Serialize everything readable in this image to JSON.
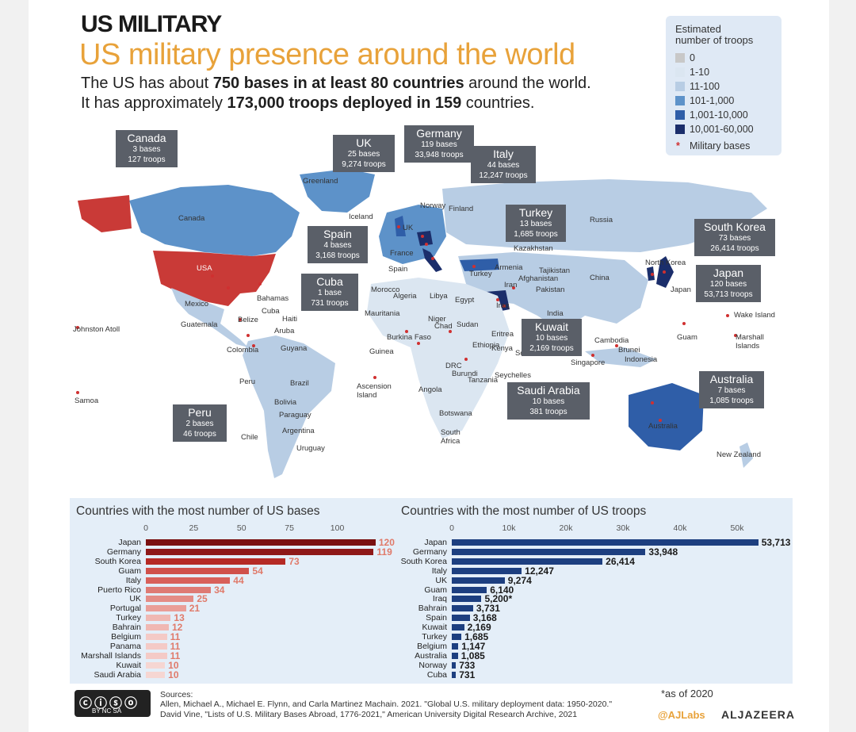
{
  "header": {
    "title": "US MILITARY",
    "subtitle": "US military presence around the world",
    "line1_pre": "The US has about ",
    "line1_b1": "750 bases in at least 80 countries",
    "line1_post": " around the world.",
    "line2_pre": "It has approximately ",
    "line2_b1": "173,000 troops deployed in 159",
    "line2_post": " countries."
  },
  "legend": {
    "title_line1": "Estimated",
    "title_line2": "number of troops",
    "items": [
      {
        "label": "0",
        "color": "#c8c8c8"
      },
      {
        "label": "1-10",
        "color": "#dbe6f1"
      },
      {
        "label": "11-100",
        "color": "#b8cde4"
      },
      {
        "label": "101-1,000",
        "color": "#5d92c9"
      },
      {
        "label": "1,001-10,000",
        "color": "#2f5ea8"
      },
      {
        "label": "10,001-60,000",
        "color": "#1b2e6b"
      }
    ],
    "bases_label": "Military bases",
    "bases_marker": "*"
  },
  "callouts": [
    {
      "name": "Canada",
      "bases": "3 bases",
      "troops": "127 troops"
    },
    {
      "name": "UK",
      "bases": "25 bases",
      "troops": "9,274 troops"
    },
    {
      "name": "Germany",
      "bases": "119 bases",
      "troops": "33,948 troops"
    },
    {
      "name": "Italy",
      "bases": "44 bases",
      "troops": "12,247 troops"
    },
    {
      "name": "Turkey",
      "bases": "13 bases",
      "troops": "1,685 troops"
    },
    {
      "name": "South Korea",
      "bases": "73 bases",
      "troops": "26,414 troops"
    },
    {
      "name": "Spain",
      "bases": "4 bases",
      "troops": "3,168 troops"
    },
    {
      "name": "Cuba",
      "bases": "1 base",
      "troops": "731 troops"
    },
    {
      "name": "Japan",
      "bases": "120 bases",
      "troops": "53,713 troops"
    },
    {
      "name": "Kuwait",
      "bases": "10 bases",
      "troops": "2,169 troops"
    },
    {
      "name": "Saudi Arabia",
      "bases": "10 bases",
      "troops": "381 troops"
    },
    {
      "name": "Australia",
      "bases": "7 bases",
      "troops": "1,085 troops"
    },
    {
      "name": "Peru",
      "bases": "2 bases",
      "troops": "46 troops"
    }
  ],
  "map_labels": [
    "Greenland",
    "Canada",
    "Iceland",
    "Norway",
    "Finland",
    "Russia",
    "UK",
    "France",
    "Spain",
    "Kazakhstan",
    "USA",
    "Armenia",
    "China",
    "Mexico",
    "Bahamas",
    "Cuba",
    "Haiti",
    "Iran",
    "Pakistan",
    "Afghanistan",
    "Algeria",
    "Libya",
    "Egypt",
    "India",
    "Johnston Atoll",
    "Guatemala",
    "Belize",
    "Aruba",
    "Niger",
    "Chad",
    "Sudan",
    "Eritrea",
    "Guam",
    "Marshall Islands",
    "Wake Island",
    "Colombia",
    "Guyana",
    "Burkina Faso",
    "Guinea",
    "Ethiopia",
    "Cambodia",
    "Brunei",
    "Indonesia",
    "Singapore",
    "Peru",
    "Brazil",
    "Ascension Island",
    "DRC",
    "Burundi",
    "Tanzania",
    "Seychelles",
    "Samoa",
    "Angola",
    "Bolivia",
    "Paraguay",
    "Chile",
    "Argentina",
    "Uruguay",
    "Botswana",
    "South Africa",
    "Australia",
    "New Zealand",
    "Morocco",
    "Mauritania",
    "Kenya",
    "Somalia",
    "Japan",
    "North Korea",
    "Turkey",
    "Tajikistan",
    "Iraq"
  ],
  "footer": {
    "sources_label": "Sources:",
    "source1": "Allen, Michael A., Michael E. Flynn, and Carla Martinez Machain. 2021. \"Global U.S. military deployment data: 1950-2020.\"",
    "source2": "David Vine, \"Lists of U.S. Military Bases Abroad, 1776-2021,\" American University Digital Research Archive, 2021",
    "note": "*as of 2020",
    "handle": "@AJLabs",
    "brand": "ALJAZEERA",
    "cc_text": "BY  NC  SA"
  },
  "chart_data": [
    {
      "type": "bar",
      "orientation": "horizontal",
      "title": "Countries with the most number of US bases",
      "xlim": [
        0,
        130
      ],
      "ticks": [
        0,
        25,
        50,
        75,
        100
      ],
      "tick_labels": [
        "0",
        "25",
        "50",
        "75",
        "100"
      ],
      "categories": [
        "Japan",
        "Germany",
        "South Korea",
        "Guam",
        "Italy",
        "Puerto Rico",
        "UK",
        "Portugal",
        "Turkey",
        "Bahrain",
        "Belgium",
        "Panama",
        "Marshall Islands",
        "Kuwait",
        "Saudi Arabia"
      ],
      "values": [
        120,
        119,
        73,
        54,
        44,
        34,
        25,
        21,
        13,
        12,
        11,
        11,
        11,
        10,
        10
      ],
      "value_labels": [
        "120",
        "119",
        "73",
        "54",
        "44",
        "34",
        "25",
        "21",
        "13",
        "12",
        "11",
        "11",
        "11",
        "10",
        "10"
      ],
      "colors": [
        "#7a1010",
        "#8e1818",
        "#b52a25",
        "#d0504a",
        "#d8605a",
        "#de7a74",
        "#e48c86",
        "#ea9e98",
        "#f0b8b3",
        "#f0b8b3",
        "#f4cac6",
        "#f4cac6",
        "#f4cac6",
        "#f6d6d2",
        "#f6d6d2"
      ],
      "label_color": "#e07a6a"
    },
    {
      "type": "bar",
      "orientation": "horizontal",
      "title": "Countries with the most number of US troops",
      "xlim": [
        0,
        55000
      ],
      "ticks": [
        0,
        10000,
        20000,
        30000,
        40000,
        50000
      ],
      "tick_labels": [
        "0",
        "10k",
        "20k",
        "30k",
        "40k",
        "50k"
      ],
      "categories": [
        "Japan",
        "Germany",
        "South Korea",
        "Italy",
        "UK",
        "Guam",
        "Iraq",
        "Bahrain",
        "Spain",
        "Kuwait",
        "Turkey",
        "Belgium",
        "Australia",
        "Norway",
        "Cuba"
      ],
      "values": [
        53713,
        33948,
        26414,
        12247,
        9274,
        6140,
        5200,
        3731,
        3168,
        2169,
        1685,
        1147,
        1085,
        733,
        731
      ],
      "value_labels": [
        "53,713",
        "33,948",
        "26,414",
        "12,247",
        "9,274",
        "6,140",
        "5,200*",
        "3,731",
        "3,168",
        "2,169",
        "1,685",
        "1,147",
        "1,085",
        "733",
        "731"
      ],
      "color": "#1d3f80",
      "label_color": "#1a1a1a"
    }
  ]
}
